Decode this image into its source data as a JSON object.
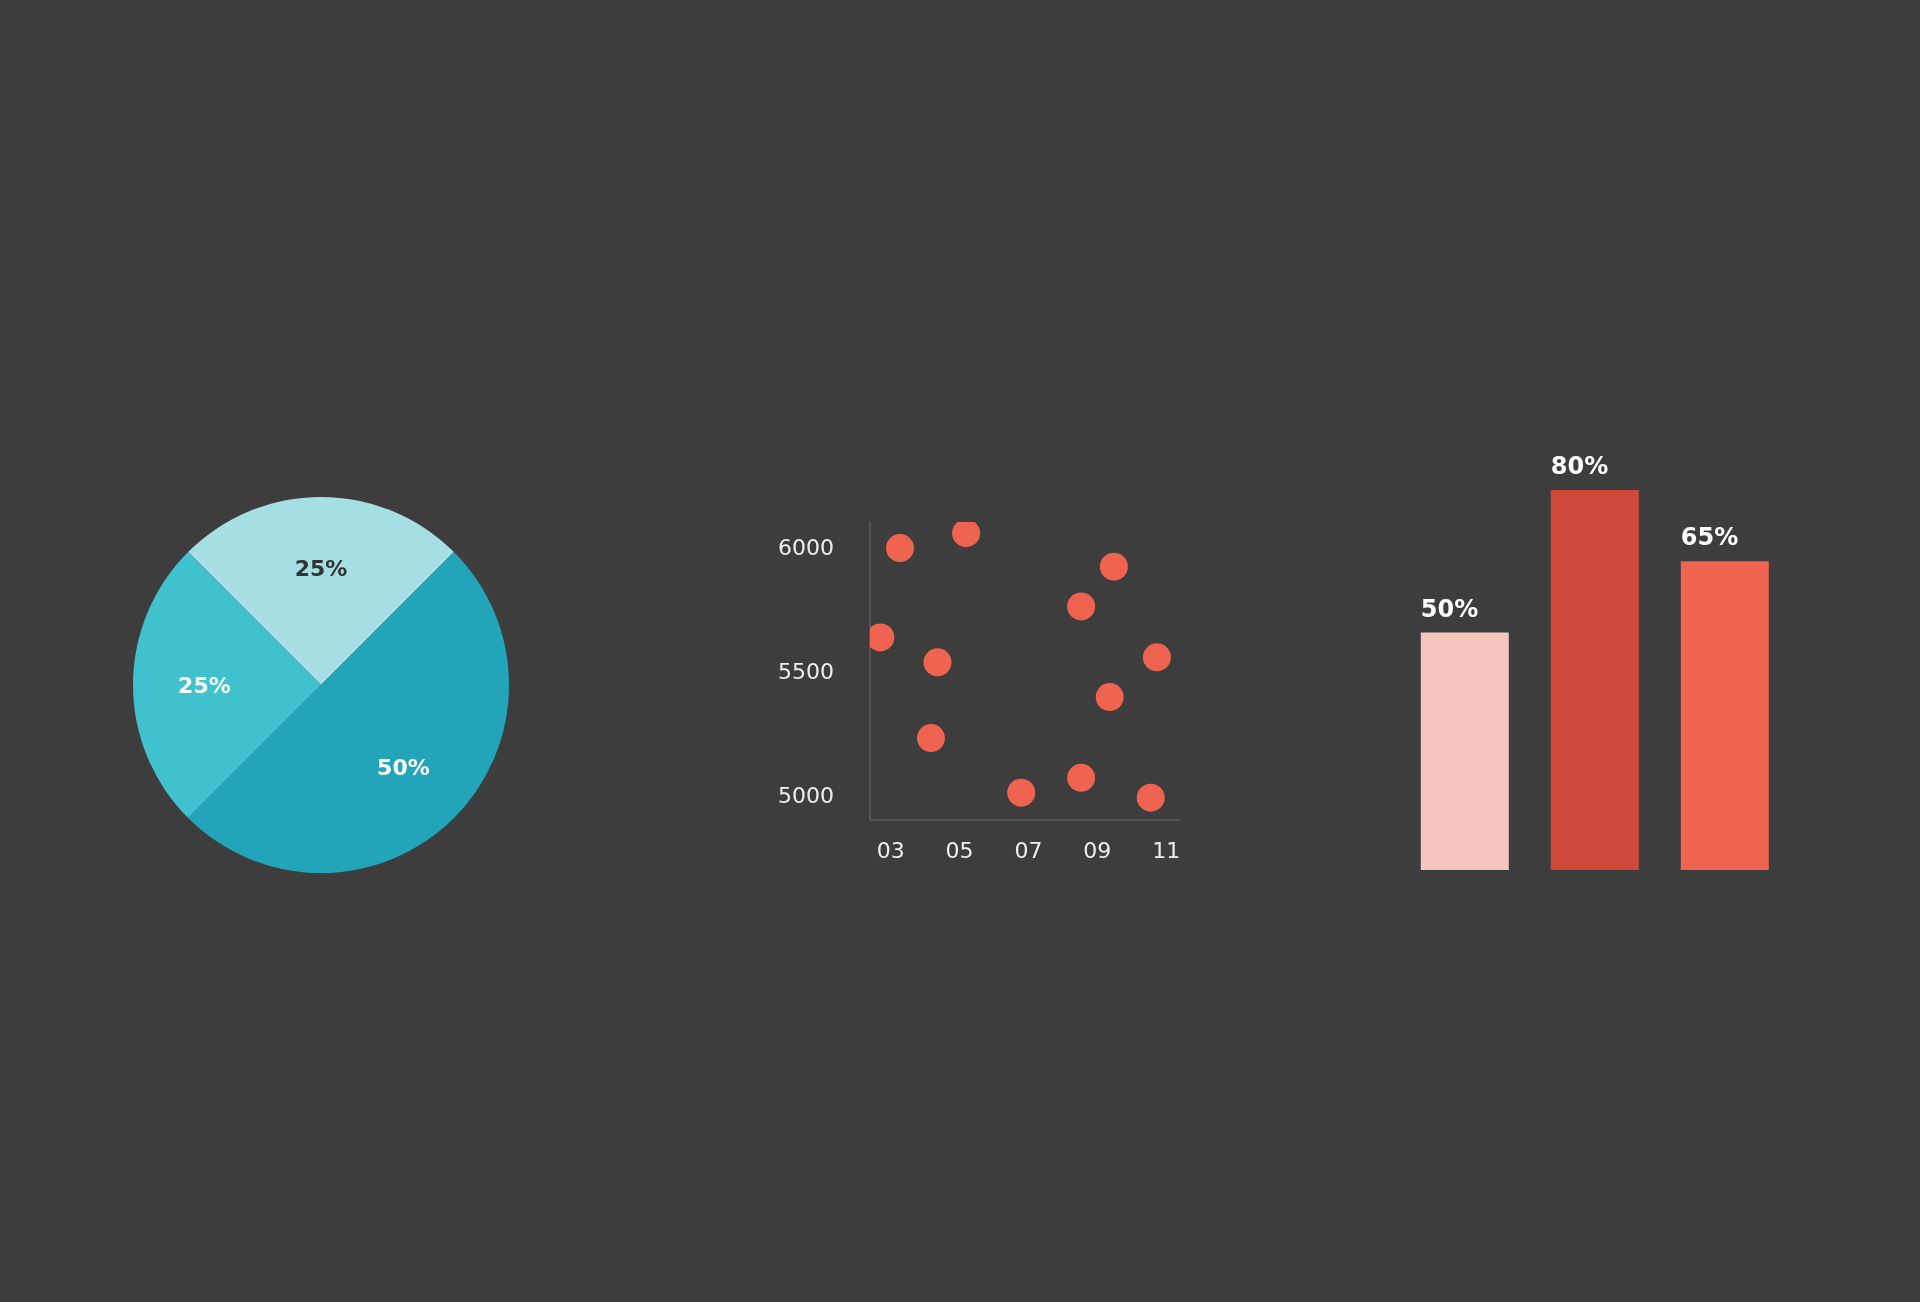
{
  "chart_data": [
    {
      "type": "pie",
      "categories": [
        null,
        null,
        null
      ],
      "values": [
        25,
        50,
        25
      ],
      "colors": [
        "#a6dfe3",
        "#22a5b8",
        "#40c2ce"
      ],
      "data_labels": true,
      "value_labels": [
        "25%",
        "50%",
        "25%"
      ]
    },
    {
      "type": "scatter",
      "x": [
        3.27,
        5.19,
        2.7,
        4.36,
        4.17,
        6.79,
        8.53,
        9.48,
        10.73,
        9.36,
        8.53,
        10.55
      ],
      "values": [
        5995,
        6055,
        5635,
        5535,
        5230,
        5010,
        5760,
        5920,
        5555,
        5395,
        5070,
        4990
      ],
      "color": "#ee6450",
      "xlim": [
        2.4,
        11.4
      ],
      "ylim": [
        4900,
        6100
      ],
      "xticks": [
        {
          "value": 3,
          "label": "03"
        },
        {
          "value": 5,
          "label": "05"
        },
        {
          "value": 7,
          "label": "07"
        },
        {
          "value": 9,
          "label": "09"
        },
        {
          "value": 11,
          "label": "11"
        }
      ],
      "yticks": [
        5000,
        5500,
        6000
      ],
      "grid": false,
      "marker": "circle"
    },
    {
      "type": "bar",
      "categories": [
        null,
        null,
        null
      ],
      "values": [
        50,
        80,
        65
      ],
      "colors": [
        "#f5c6bf",
        "#cf4a3b",
        "#ee6450"
      ],
      "data_labels": true,
      "value_labels": [
        "50%",
        "80%",
        "65%"
      ]
    }
  ]
}
